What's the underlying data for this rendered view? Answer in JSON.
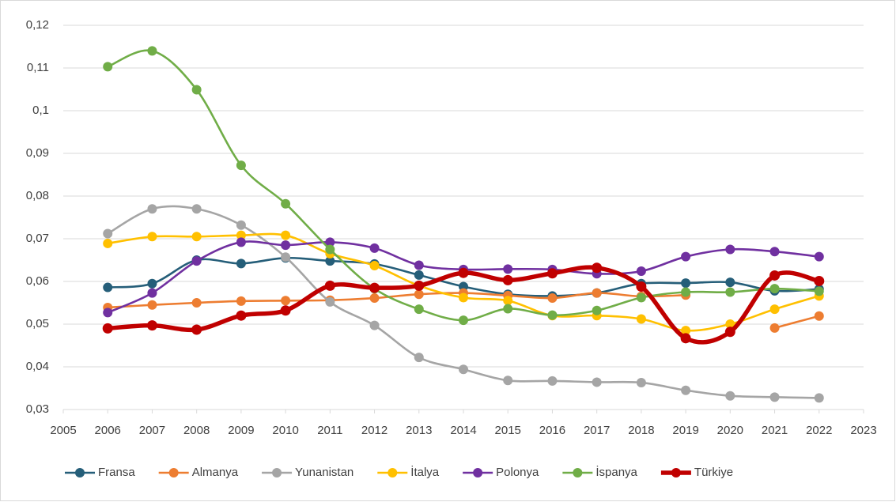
{
  "chart_data": {
    "type": "line",
    "x": [
      2006,
      2007,
      2008,
      2009,
      2010,
      2011,
      2012,
      2013,
      2014,
      2015,
      2016,
      2017,
      2018,
      2019,
      2020,
      2021,
      2022
    ],
    "xlim": [
      2005,
      2023
    ],
    "xticks": [
      2005,
      2006,
      2007,
      2008,
      2009,
      2010,
      2011,
      2012,
      2013,
      2014,
      2015,
      2016,
      2017,
      2018,
      2019,
      2020,
      2021,
      2022,
      2023
    ],
    "ylim": [
      0.03,
      0.12
    ],
    "yticks": [
      {
        "value": 0.03,
        "label": "0,03"
      },
      {
        "value": 0.04,
        "label": "0,04"
      },
      {
        "value": 0.05,
        "label": "0,05"
      },
      {
        "value": 0.06,
        "label": "0,06"
      },
      {
        "value": 0.07,
        "label": "0,07"
      },
      {
        "value": 0.08,
        "label": "0,08"
      },
      {
        "value": 0.09,
        "label": "0,09"
      },
      {
        "value": 0.1,
        "label": "0,1"
      },
      {
        "value": 0.11,
        "label": "0,11"
      },
      {
        "value": 0.12,
        "label": "0,12"
      }
    ],
    "grid": true,
    "smooth": true,
    "legend": "bottom",
    "series": [
      {
        "name": "Fransa",
        "color": "#255e79",
        "values": [
          0.0586,
          0.0595,
          0.065,
          0.0642,
          0.0655,
          0.0648,
          0.0641,
          0.0615,
          0.0588,
          0.057,
          0.0566,
          0.0573,
          0.0595,
          0.0596,
          0.0598,
          0.0578,
          0.0582
        ]
      },
      {
        "name": "Almanya",
        "color": "#ed7d31",
        "values": [
          0.0539,
          0.0545,
          0.055,
          0.0554,
          0.0555,
          0.0556,
          0.0561,
          0.057,
          0.0573,
          0.0567,
          0.0561,
          0.0573,
          0.0565,
          0.0568,
          null,
          0.0491,
          0.0519
        ]
      },
      {
        "name": "Yunanistan",
        "color": "#a5a5a5",
        "values": [
          0.0712,
          0.077,
          0.077,
          0.0732,
          0.0657,
          0.0552,
          0.0497,
          0.0422,
          0.0394,
          0.0368,
          0.0367,
          0.0364,
          0.0363,
          0.0345,
          0.0332,
          0.0329,
          0.0327
        ]
      },
      {
        "name": "İtalya",
        "color": "#ffc000",
        "values": [
          0.0689,
          0.0705,
          0.0705,
          0.0708,
          0.0708,
          0.0665,
          0.0637,
          0.059,
          0.0562,
          0.0555,
          0.052,
          0.052,
          0.0512,
          0.0485,
          0.05,
          0.0535,
          0.0566
        ]
      },
      {
        "name": "Polonya",
        "color": "#7030a0",
        "values": [
          0.0527,
          0.0573,
          0.0648,
          0.0692,
          0.0685,
          0.0692,
          0.0678,
          0.0638,
          0.0628,
          0.0629,
          0.0628,
          0.0618,
          0.0624,
          0.0658,
          0.0675,
          0.067,
          0.0658
        ]
      },
      {
        "name": "İspanya",
        "color": "#70ad47",
        "values": [
          0.1103,
          0.114,
          0.1049,
          0.0872,
          0.0782,
          0.0675,
          0.0583,
          0.0535,
          0.0509,
          0.0536,
          0.0521,
          0.0532,
          0.0562,
          0.0575,
          0.0575,
          0.0583,
          0.0577
        ]
      },
      {
        "name": "Türkiye",
        "color": "#c00000",
        "values": [
          0.049,
          0.0497,
          0.0487,
          0.052,
          0.0532,
          0.059,
          0.0585,
          0.059,
          0.062,
          0.0603,
          0.0619,
          0.0632,
          0.0588,
          0.0467,
          0.0482,
          0.0614,
          0.0601
        ]
      }
    ]
  }
}
